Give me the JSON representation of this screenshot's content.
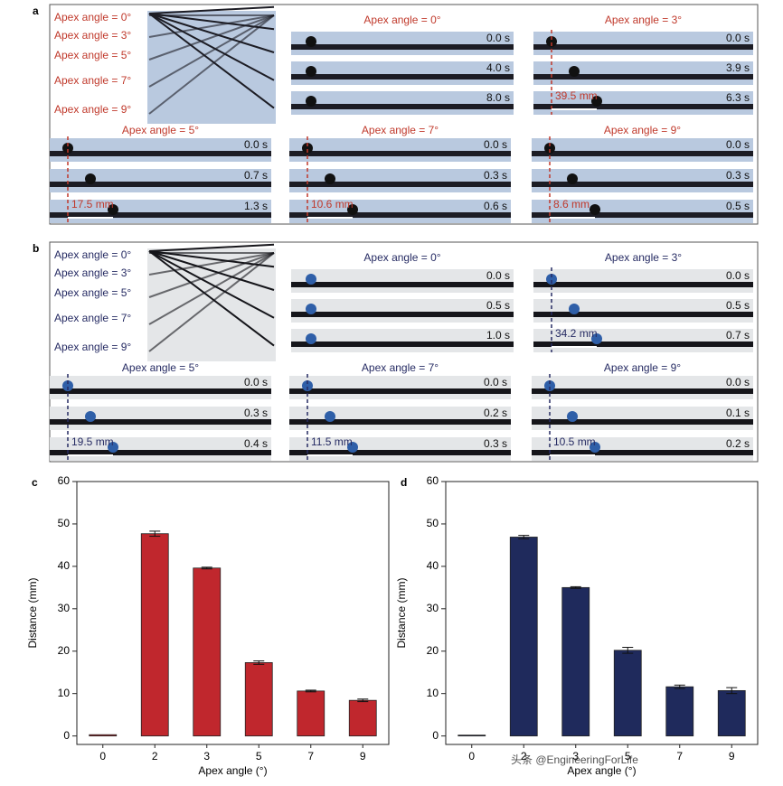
{
  "photo_panels": {
    "a": {
      "label": "a",
      "text_color": "#c0392b",
      "rod_color": "#1c1c24",
      "strip_color": "#b9c9df",
      "overview_labels": [
        "Apex angle = 0°",
        "Apex angle = 3°",
        "Apex angle = 5°",
        "Apex angle = 7°",
        "Apex angle = 9°"
      ],
      "sequences": [
        {
          "title": "Apex angle = 0°",
          "times": [
            "0.0 s",
            "4.0 s",
            "8.0 s"
          ]
        },
        {
          "title": "Apex angle = 3°",
          "times": [
            "0.0 s",
            "3.9 s",
            "6.3 s"
          ],
          "distance": "39.5 mm"
        },
        {
          "title": "Apex angle = 5°",
          "times": [
            "0.0 s",
            "0.7 s",
            "1.3 s"
          ],
          "distance": "17.5 mm"
        },
        {
          "title": "Apex angle = 7°",
          "times": [
            "0.0 s",
            "0.3 s",
            "0.6 s"
          ],
          "distance": "10.6 mm"
        },
        {
          "title": "Apex angle = 9°",
          "times": [
            "0.0 s",
            "0.3 s",
            "0.5 s"
          ],
          "distance": "8.6 mm"
        }
      ]
    },
    "b": {
      "label": "b",
      "text_color": "#262b63",
      "rod_color": "#15151a",
      "strip_color": "#e4e6e8",
      "overview_labels": [
        "Apex angle = 0°",
        "Apex angle = 3°",
        "Apex angle = 5°",
        "Apex angle = 7°",
        "Apex angle = 9°"
      ],
      "sequences": [
        {
          "title": "Apex angle = 0°",
          "times": [
            "0.0 s",
            "0.5 s",
            "1.0 s"
          ]
        },
        {
          "title": "Apex angle = 3°",
          "times": [
            "0.0 s",
            "0.5 s",
            "0.7 s"
          ],
          "distance": "34.2 mm"
        },
        {
          "title": "Apex angle = 5°",
          "times": [
            "0.0 s",
            "0.3 s",
            "0.4 s"
          ],
          "distance": "19.5 mm"
        },
        {
          "title": "Apex angle = 7°",
          "times": [
            "0.0 s",
            "0.2 s",
            "0.3 s"
          ],
          "distance": "11.5 mm"
        },
        {
          "title": "Apex angle = 9°",
          "times": [
            "0.0 s",
            "0.1 s",
            "0.2 s"
          ],
          "distance": "10.5 mm"
        }
      ]
    }
  },
  "chart_data": [
    {
      "type": "bar",
      "panel_label": "c",
      "x_label": "Apex angle (°)",
      "y_label": "Distance (mm)",
      "categories": [
        "0",
        "2",
        "3",
        "5",
        "7",
        "9"
      ],
      "values": [
        0.3,
        47.7,
        39.6,
        17.3,
        10.6,
        8.4
      ],
      "errors": [
        0,
        0.6,
        0.2,
        0.4,
        0.2,
        0.3
      ],
      "color": "#c0272d",
      "ylim": [
        -2,
        60
      ],
      "yticks": [
        0,
        10,
        20,
        30,
        40,
        50,
        60
      ]
    },
    {
      "type": "bar",
      "panel_label": "d",
      "x_label": "Apex angle (°)",
      "y_label": "Distance (mm)",
      "categories": [
        "0",
        "2",
        "3",
        "5",
        "7",
        "9"
      ],
      "values": [
        0.2,
        46.9,
        35.0,
        20.2,
        11.6,
        10.7
      ],
      "errors": [
        0,
        0.4,
        0.2,
        0.7,
        0.4,
        0.7
      ],
      "color": "#1f2a5c",
      "ylim": [
        -2,
        60
      ],
      "yticks": [
        0,
        10,
        20,
        30,
        40,
        50,
        60
      ]
    }
  ],
  "watermark": "头条 @EngineeringForLife"
}
